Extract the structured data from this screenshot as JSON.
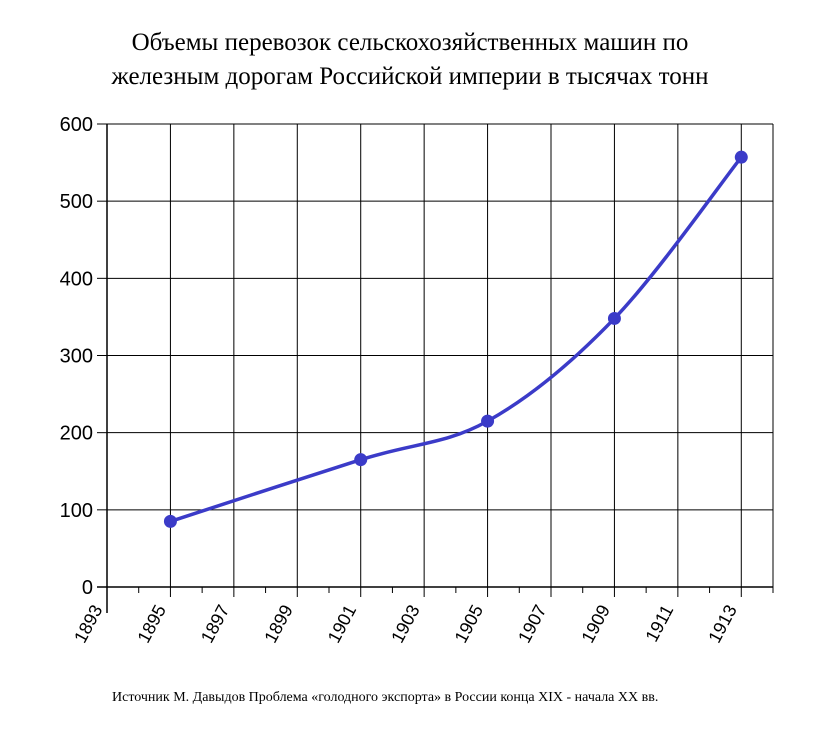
{
  "chart_data": {
    "type": "line",
    "title_lines": [
      "Объемы перевозок сельскохозяйственных машин по",
      "железным дорогам Российской империи  в тысячах тонн"
    ],
    "xlabel": "",
    "ylabel": "",
    "ylim": [
      0,
      600
    ],
    "xlim": [
      1893,
      1914
    ],
    "x_ticks": [
      1893,
      1895,
      1897,
      1899,
      1901,
      1903,
      1905,
      1907,
      1909,
      1911,
      1913
    ],
    "y_ticks": [
      0,
      100,
      200,
      300,
      400,
      500,
      600
    ],
    "grid": true,
    "series": [
      {
        "points": [
          {
            "x": 1895,
            "y": 85
          },
          {
            "x": 1901,
            "y": 165
          },
          {
            "x": 1905,
            "y": 215
          },
          {
            "x": 1909,
            "y": 348
          },
          {
            "x": 1913,
            "y": 557
          }
        ],
        "color": "#3b3bc8"
      }
    ],
    "source": "Источник М. Давыдов Проблема «голодного экспорта» в России конца XIX - начала XX вв."
  }
}
